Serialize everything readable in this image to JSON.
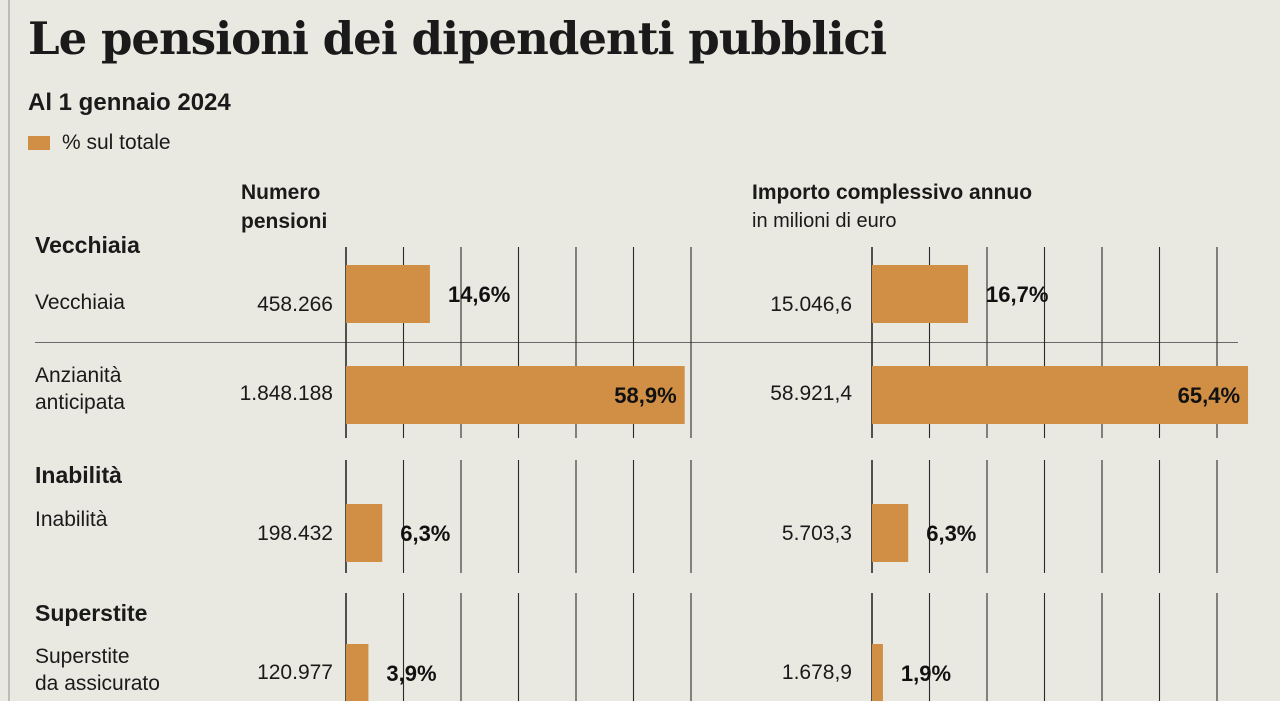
{
  "chart_data": {
    "type": "bar",
    "title": "Le pensioni dei dipendenti pubblici",
    "subtitle": "Al 1 gennaio 2024",
    "legend": "% sul totale",
    "bar_color": "#d08f45",
    "grid_color": "#2a2a2a",
    "panels": [
      {
        "header": [
          "Numero",
          "pensioni"
        ],
        "subheader": "",
        "xlim": [
          0,
          60
        ],
        "grid_step": 10
      },
      {
        "header": [
          "Importo complessivo annuo"
        ],
        "subheader": "in milioni di euro",
        "xlim": [
          0,
          65
        ],
        "grid_step": 10
      }
    ],
    "groups": [
      {
        "title": "Vecchiaia",
        "rows": [
          {
            "label": [
              "Vecchiaia"
            ],
            "number": "458.266",
            "number_pct": 14.6,
            "number_pct_label": "14,6%",
            "amount": "15.046,6",
            "amount_pct": 16.7,
            "amount_pct_label": "16,7%"
          },
          {
            "label": [
              "Anzianità",
              "anticipata"
            ],
            "number": "1.848.188",
            "number_pct": 58.9,
            "number_pct_label": "58,9%",
            "amount": "58.921,4",
            "amount_pct": 65.4,
            "amount_pct_label": "65,4%"
          }
        ]
      },
      {
        "title": "Inabilità",
        "rows": [
          {
            "label": [
              "Inabilità"
            ],
            "number": "198.432",
            "number_pct": 6.3,
            "number_pct_label": "6,3%",
            "amount": "5.703,3",
            "amount_pct": 6.3,
            "amount_pct_label": "6,3%"
          }
        ]
      },
      {
        "title": "Superstite",
        "rows": [
          {
            "label": [
              "Superstite",
              "da assicurato"
            ],
            "number": "120.977",
            "number_pct": 3.9,
            "number_pct_label": "3,9%",
            "amount": "1.678,9",
            "amount_pct": 1.9,
            "amount_pct_label": "1,9%"
          }
        ]
      }
    ]
  }
}
